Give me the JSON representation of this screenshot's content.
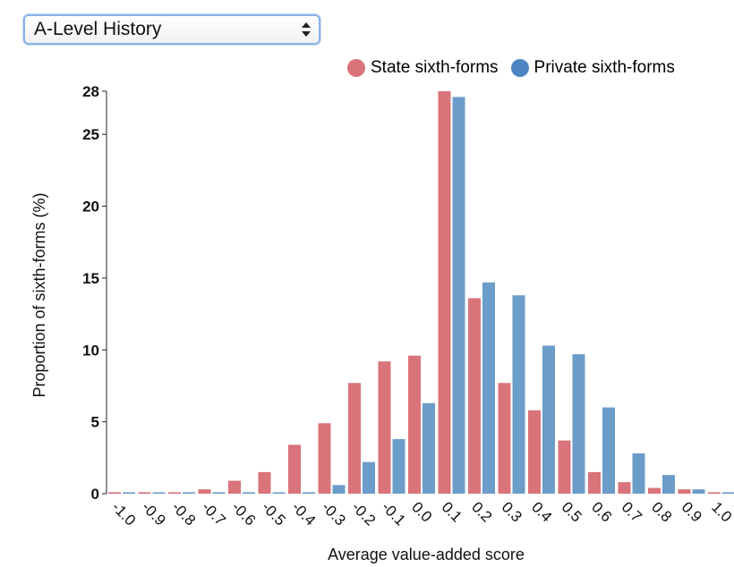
{
  "selector": {
    "value": "A-Level History"
  },
  "legend": [
    {
      "label": "State sixth-forms",
      "color": "#d9747a"
    },
    {
      "label": "Private sixth-forms",
      "color": "#6c9cc8"
    }
  ],
  "chart_data": {
    "type": "bar",
    "title": "",
    "xlabel": "Average value-added score",
    "ylabel": "Proportion of sixth-forms (%)",
    "ylim": [
      0,
      28
    ],
    "yticks": [
      0,
      5,
      10,
      15,
      20,
      25,
      28
    ],
    "categories": [
      "-1.0",
      "-0.9",
      "-0.8",
      "-0.7",
      "-0.6",
      "-0.5",
      "-0.4",
      "-0.3",
      "-0.2",
      "-0.1",
      "0.0",
      "0.1",
      "0.2",
      "0.3",
      "0.4",
      "0.5",
      "0.6",
      "0.7",
      "0.8",
      "0.9",
      "1.0"
    ],
    "series": [
      {
        "name": "State sixth-forms",
        "color": "#d9747a",
        "values": [
          0.1,
          0.1,
          0.1,
          0.3,
          0.9,
          1.5,
          3.4,
          4.9,
          7.7,
          9.2,
          9.6,
          28,
          13.6,
          7.7,
          5.8,
          3.7,
          1.5,
          0.8,
          0.4,
          0.3,
          0.1
        ]
      },
      {
        "name": "Private sixth-forms",
        "color": "#6c9cc8",
        "values": [
          0.1,
          0.1,
          0.1,
          0.1,
          0.1,
          0.1,
          0.1,
          0.6,
          2.2,
          3.8,
          6.3,
          27.6,
          14.7,
          13.8,
          10.3,
          9.7,
          6.0,
          2.8,
          1.3,
          0.3,
          0.1
        ]
      }
    ],
    "grid": false,
    "legend_position": "top-right"
  }
}
